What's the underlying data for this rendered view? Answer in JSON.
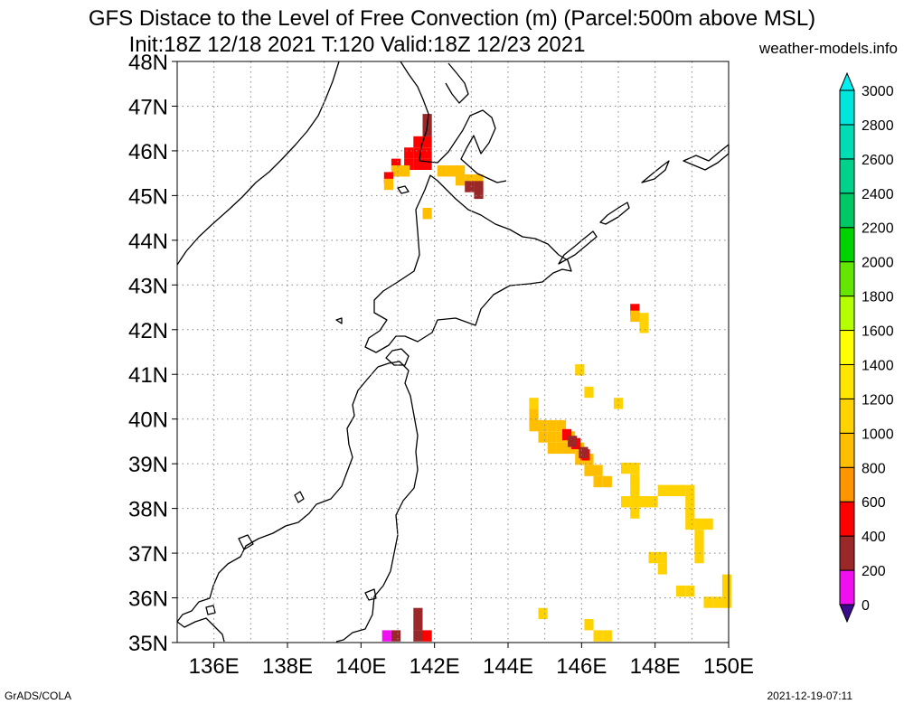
{
  "title_line1": "GFS Distace to the Level of Free Convection (m) (Parcel:500m above MSL)",
  "title_line2": "Init:18Z 12/18 2021 T:120 Valid:18Z 12/23 2021",
  "site": "weather-models.info",
  "footer_left": "GrADS/COLA",
  "footer_right": "2021-12-19-07:11",
  "map": {
    "lon_range": [
      135,
      150
    ],
    "lat_range": [
      35,
      48
    ],
    "lon_labels": [
      "136E",
      "138E",
      "140E",
      "142E",
      "144E",
      "146E",
      "148E",
      "150E"
    ],
    "lat_labels": [
      "35N",
      "36N",
      "37N",
      "38N",
      "39N",
      "40N",
      "41N",
      "42N",
      "43N",
      "44N",
      "45N",
      "46N",
      "47N",
      "48N"
    ]
  },
  "colorbar": {
    "labels": [
      "0",
      "200",
      "400",
      "600",
      "800",
      "1000",
      "1200",
      "1400",
      "1600",
      "1800",
      "2000",
      "2200",
      "2400",
      "2600",
      "2800",
      "3000"
    ],
    "colors": [
      "#3c0a8c",
      "#f00ff0",
      "#9b2828",
      "#ff0000",
      "#ff9600",
      "#ffbe00",
      "#ffd200",
      "#ffe600",
      "#ffff00",
      "#b4ff00",
      "#64e600",
      "#00d200",
      "#00c864",
      "#00d28c",
      "#00dcb4",
      "#00e6dc",
      "#00f0f0"
    ]
  },
  "cells": [
    {
      "lon": 141.8,
      "lat": 46.7,
      "level": "400-600"
    },
    {
      "lon": 141.8,
      "lat": 46.45,
      "level": "400-600"
    },
    {
      "lon": 141.55,
      "lat": 46.2,
      "level": "600-800"
    },
    {
      "lon": 141.8,
      "lat": 46.2,
      "level": "600-800"
    },
    {
      "lon": 141.3,
      "lat": 45.95,
      "level": "600-800"
    },
    {
      "lon": 141.55,
      "lat": 45.95,
      "level": "600-800"
    },
    {
      "lon": 141.8,
      "lat": 45.95,
      "level": "600-800"
    },
    {
      "lon": 140.95,
      "lat": 45.7,
      "level": "600-800"
    },
    {
      "lon": 141.3,
      "lat": 45.7,
      "level": "600-800"
    },
    {
      "lon": 141.55,
      "lat": 45.7,
      "level": "600-800"
    },
    {
      "lon": 141.8,
      "lat": 45.7,
      "level": "600-800"
    },
    {
      "lon": 140.95,
      "lat": 45.55,
      "level": "1000-1200"
    },
    {
      "lon": 141.2,
      "lat": 45.55,
      "level": "1000-1200"
    },
    {
      "lon": 142.2,
      "lat": 45.55,
      "level": "1000-1200"
    },
    {
      "lon": 142.45,
      "lat": 45.55,
      "level": "1000-1200"
    },
    {
      "lon": 142.7,
      "lat": 45.55,
      "level": "1000-1200"
    },
    {
      "lon": 142.7,
      "lat": 45.35,
      "level": "1000-1200"
    },
    {
      "lon": 142.95,
      "lat": 45.35,
      "level": "1000-1200"
    },
    {
      "lon": 143.2,
      "lat": 45.35,
      "level": "1000-1200"
    },
    {
      "lon": 142.95,
      "lat": 45.2,
      "level": "400-600"
    },
    {
      "lon": 143.2,
      "lat": 45.2,
      "level": "400-600"
    },
    {
      "lon": 143.2,
      "lat": 45.05,
      "level": "400-600"
    },
    {
      "lon": 140.75,
      "lat": 45.4,
      "level": "600-800"
    },
    {
      "lon": 140.75,
      "lat": 45.25,
      "level": "1000-1200"
    },
    {
      "lon": 141.8,
      "lat": 44.6,
      "level": "1000-1200"
    },
    {
      "lon": 147.45,
      "lat": 42.45,
      "level": "600-800"
    },
    {
      "lon": 147.45,
      "lat": 42.3,
      "level": "1000-1200"
    },
    {
      "lon": 147.7,
      "lat": 42.25,
      "level": "1200-1400"
    },
    {
      "lon": 147.7,
      "lat": 42.05,
      "level": "1200-1400"
    },
    {
      "lon": 145.95,
      "lat": 41.1,
      "level": "1200-1400"
    },
    {
      "lon": 146.2,
      "lat": 40.6,
      "level": "1200-1400"
    },
    {
      "lon": 147.0,
      "lat": 40.35,
      "level": "1200-1400"
    },
    {
      "lon": 144.7,
      "lat": 40.35,
      "level": "1200-1400"
    },
    {
      "lon": 144.7,
      "lat": 40.1,
      "level": "1000-1200"
    },
    {
      "lon": 144.7,
      "lat": 39.85,
      "level": "1000-1200"
    },
    {
      "lon": 144.95,
      "lat": 39.85,
      "level": "1000-1200"
    },
    {
      "lon": 145.2,
      "lat": 39.85,
      "level": "1000-1200"
    },
    {
      "lon": 145.45,
      "lat": 39.85,
      "level": "1000-1200"
    },
    {
      "lon": 144.95,
      "lat": 39.6,
      "level": "1000-1200"
    },
    {
      "lon": 145.2,
      "lat": 39.6,
      "level": "1000-1200"
    },
    {
      "lon": 145.45,
      "lat": 39.6,
      "level": "1000-1200"
    },
    {
      "lon": 145.7,
      "lat": 39.6,
      "level": "1000-1200"
    },
    {
      "lon": 145.2,
      "lat": 39.35,
      "level": "1000-1200"
    },
    {
      "lon": 145.45,
      "lat": 39.35,
      "level": "1000-1200"
    },
    {
      "lon": 145.7,
      "lat": 39.35,
      "level": "1000-1200"
    },
    {
      "lon": 145.95,
      "lat": 39.35,
      "level": "1000-1200"
    },
    {
      "lon": 145.95,
      "lat": 39.1,
      "level": "1000-1200"
    },
    {
      "lon": 146.2,
      "lat": 39.1,
      "level": "1000-1200"
    },
    {
      "lon": 146.2,
      "lat": 38.85,
      "level": "1000-1200"
    },
    {
      "lon": 146.45,
      "lat": 38.85,
      "level": "1000-1200"
    },
    {
      "lon": 146.45,
      "lat": 38.6,
      "level": "1000-1200"
    },
    {
      "lon": 146.7,
      "lat": 38.6,
      "level": "1000-1200"
    },
    {
      "lon": 145.6,
      "lat": 39.65,
      "level": "600-800"
    },
    {
      "lon": 145.85,
      "lat": 39.45,
      "level": "600-800"
    },
    {
      "lon": 146.1,
      "lat": 39.2,
      "level": "600-800"
    },
    {
      "lon": 145.75,
      "lat": 39.5,
      "level": "400-600"
    },
    {
      "lon": 146.05,
      "lat": 39.25,
      "level": "400-600"
    },
    {
      "lon": 147.2,
      "lat": 38.9,
      "level": "1200-1400"
    },
    {
      "lon": 147.45,
      "lat": 38.9,
      "level": "1200-1400"
    },
    {
      "lon": 147.45,
      "lat": 38.65,
      "level": "1200-1400"
    },
    {
      "lon": 147.45,
      "lat": 38.4,
      "level": "1200-1400"
    },
    {
      "lon": 147.2,
      "lat": 38.15,
      "level": "1200-1400"
    },
    {
      "lon": 147.45,
      "lat": 38.15,
      "level": "1200-1400"
    },
    {
      "lon": 147.7,
      "lat": 38.15,
      "level": "1200-1400"
    },
    {
      "lon": 147.95,
      "lat": 38.15,
      "level": "1200-1400"
    },
    {
      "lon": 147.45,
      "lat": 37.9,
      "level": "1200-1400"
    },
    {
      "lon": 148.2,
      "lat": 38.4,
      "level": "1200-1400"
    },
    {
      "lon": 148.45,
      "lat": 38.4,
      "level": "1200-1400"
    },
    {
      "lon": 148.7,
      "lat": 38.4,
      "level": "1200-1400"
    },
    {
      "lon": 148.95,
      "lat": 38.4,
      "level": "1200-1400"
    },
    {
      "lon": 148.95,
      "lat": 38.15,
      "level": "1200-1400"
    },
    {
      "lon": 148.95,
      "lat": 37.9,
      "level": "1200-1400"
    },
    {
      "lon": 148.95,
      "lat": 37.65,
      "level": "1200-1400"
    },
    {
      "lon": 149.2,
      "lat": 37.65,
      "level": "1200-1400"
    },
    {
      "lon": 149.45,
      "lat": 37.65,
      "level": "1200-1400"
    },
    {
      "lon": 149.2,
      "lat": 37.4,
      "level": "1200-1400"
    },
    {
      "lon": 149.2,
      "lat": 37.15,
      "level": "1200-1400"
    },
    {
      "lon": 149.2,
      "lat": 36.9,
      "level": "1200-1400"
    },
    {
      "lon": 147.95,
      "lat": 36.9,
      "level": "1200-1400"
    },
    {
      "lon": 148.2,
      "lat": 36.9,
      "level": "1200-1400"
    },
    {
      "lon": 148.2,
      "lat": 36.65,
      "level": "1200-1400"
    },
    {
      "lon": 148.7,
      "lat": 36.15,
      "level": "1200-1400"
    },
    {
      "lon": 148.95,
      "lat": 36.15,
      "level": "1200-1400"
    },
    {
      "lon": 149.95,
      "lat": 36.4,
      "level": "1200-1400"
    },
    {
      "lon": 149.95,
      "lat": 36.15,
      "level": "1200-1400"
    },
    {
      "lon": 149.45,
      "lat": 35.9,
      "level": "1200-1400"
    },
    {
      "lon": 149.7,
      "lat": 35.9,
      "level": "1200-1400"
    },
    {
      "lon": 149.95,
      "lat": 35.9,
      "level": "1200-1400"
    },
    {
      "lon": 144.95,
      "lat": 35.65,
      "level": "1200-1400"
    },
    {
      "lon": 146.2,
      "lat": 35.4,
      "level": "1200-1400"
    },
    {
      "lon": 146.45,
      "lat": 35.15,
      "level": "1200-1400"
    },
    {
      "lon": 146.7,
      "lat": 35.15,
      "level": "1200-1400"
    },
    {
      "lon": 141.55,
      "lat": 35.65,
      "level": "400-600"
    },
    {
      "lon": 141.55,
      "lat": 35.4,
      "level": "400-600"
    },
    {
      "lon": 141.55,
      "lat": 35.15,
      "level": "400-600"
    },
    {
      "lon": 141.8,
      "lat": 35.15,
      "level": "600-800"
    },
    {
      "lon": 140.95,
      "lat": 35.15,
      "level": "400-600"
    },
    {
      "lon": 140.7,
      "lat": 35.15,
      "level": "200-400"
    }
  ]
}
